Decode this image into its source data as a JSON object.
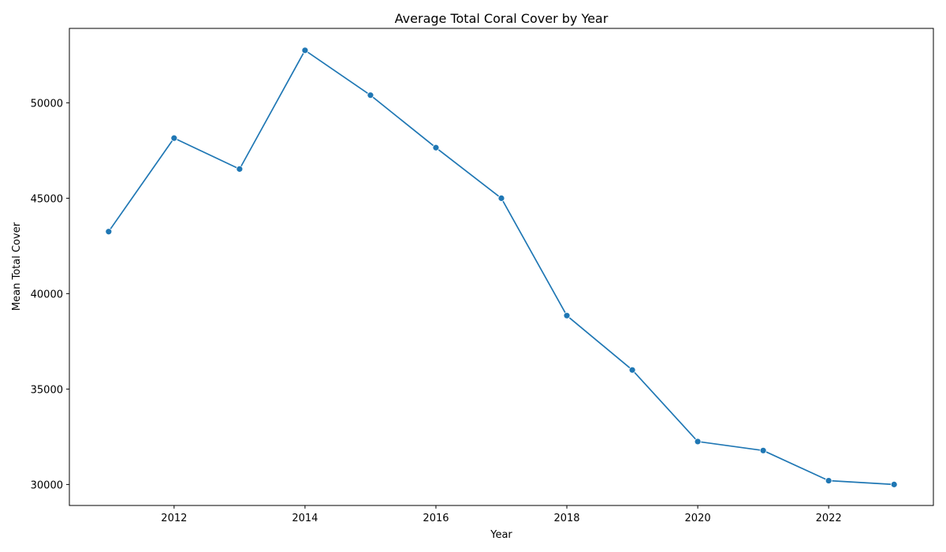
{
  "chart_data": {
    "type": "line",
    "title": "Average Total Coral Cover by Year",
    "xlabel": "Year",
    "ylabel": "Mean Total Cover",
    "x_ticks": [
      2012,
      2014,
      2016,
      2018,
      2020,
      2022
    ],
    "y_ticks": [
      30000,
      35000,
      40000,
      45000,
      50000
    ],
    "xlim": [
      2010.4,
      2023.6
    ],
    "ylim": [
      28900,
      53900
    ],
    "grid": false,
    "legend": "none",
    "series": [
      {
        "color": "#1f77b4",
        "marker": "circle",
        "x": [
          2011,
          2012,
          2013,
          2014,
          2015,
          2016,
          2017,
          2018,
          2019,
          2020,
          2021,
          2022,
          2023
        ],
        "y": [
          43250,
          48150,
          46530,
          52750,
          50400,
          47650,
          45000,
          38850,
          36000,
          32250,
          31780,
          30200,
          30000
        ]
      }
    ]
  }
}
